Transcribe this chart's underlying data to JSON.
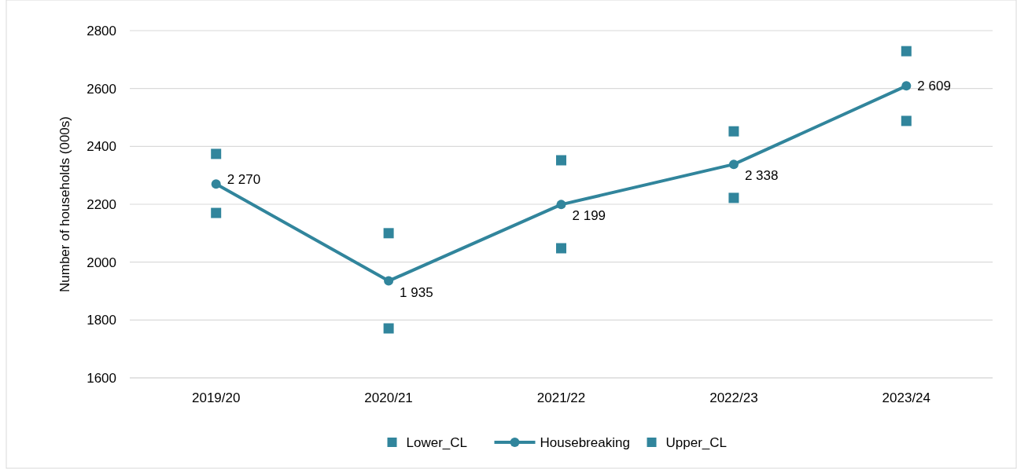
{
  "chart_data": {
    "type": "line",
    "ylabel": "Number of households (000s)",
    "categories": [
      "2019/20",
      "2020/21",
      "2021/22",
      "2022/23",
      "2023/24"
    ],
    "series": [
      {
        "name": "Lower_CL",
        "type": "scatter",
        "marker": "square",
        "color": "#31859c",
        "values": [
          2170,
          1771,
          2048,
          2222,
          2488
        ]
      },
      {
        "name": "Housebreaking",
        "marker": "circle",
        "color": "#31859c",
        "values": [
          2270,
          1935,
          2199,
          2338,
          2609
        ],
        "value_labels": [
          "2 270",
          "1 935",
          "2 199",
          "2 338",
          "2 609"
        ]
      },
      {
        "name": "Upper_CL",
        "type": "scatter",
        "marker": "square",
        "color": "#31859c",
        "values": [
          2374,
          2100,
          2352,
          2452,
          2729
        ]
      }
    ],
    "ylim": [
      1600,
      2800
    ],
    "yticks": [
      1600,
      1800,
      2000,
      2200,
      2400,
      2600,
      2800
    ],
    "grid": "y",
    "legend": "bottom"
  }
}
